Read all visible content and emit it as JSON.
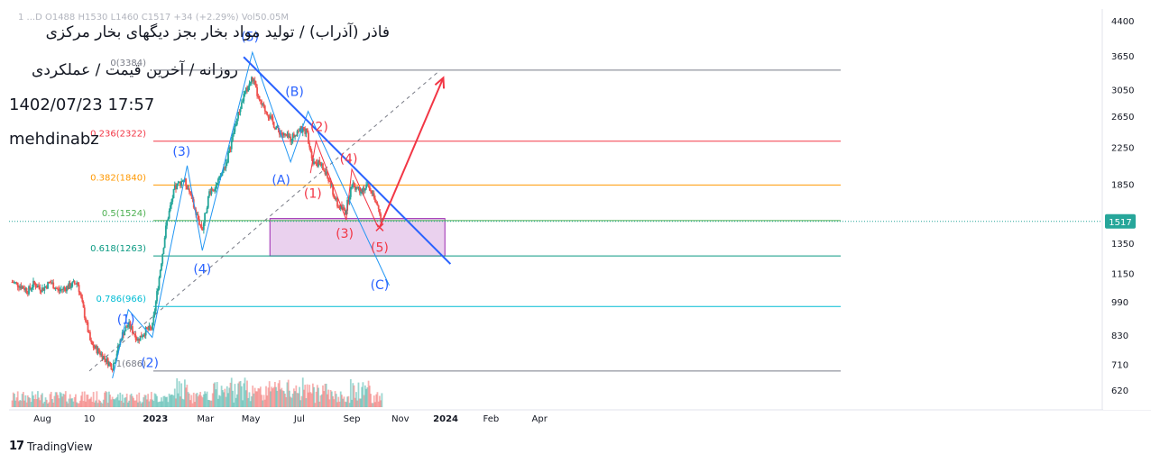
{
  "header": {
    "ohlc_readout": "1  ...D  O1488  H1530  L1460  C1517  +34 (+2.29%)  Vol50.05M",
    "title_line1": "فاذر (آذراب) / تولید مواد بخار بجز دیگهای بخار مرکزی",
    "title_line2": "روزانه / آخرین قیمت / عملکردی",
    "datetime": "1402/07/23 17:57",
    "author": "mehdinabz"
  },
  "brand": {
    "icon": "tradingview-logo-icon",
    "name": "TradingView"
  },
  "chart_data": {
    "type": "candlestick",
    "x_axis": {
      "labels": [
        "Aug",
        "10",
        "2023",
        "Mar",
        "May",
        "Jul",
        "Sep",
        "Nov",
        "2024",
        "Feb",
        "Apr"
      ]
    },
    "y_axis": {
      "scale": "log",
      "ticks": [
        4400,
        3650,
        3050,
        2650,
        2250,
        1850,
        1350,
        1150,
        990,
        830,
        710,
        620
      ],
      "range": [
        560,
        4700
      ]
    },
    "last_price": {
      "value": 1517,
      "label": "1517",
      "color": "#26a69a"
    },
    "fib_levels": [
      {
        "ratio": "0(3384)",
        "value": 3384,
        "color": "#787b86"
      },
      {
        "ratio": "0.236(2322)",
        "value": 2322,
        "color": "#f23645"
      },
      {
        "ratio": "0.382(1840)",
        "value": 1840,
        "color": "#ff9800"
      },
      {
        "ratio": "0.5(1524)",
        "value": 1524,
        "color": "#4caf50"
      },
      {
        "ratio": "0.618(1263)",
        "value": 1263,
        "color": "#089981"
      },
      {
        "ratio": "0.786(966)",
        "value": 966,
        "color": "#00bcd4"
      },
      {
        "ratio": "1(686)",
        "value": 686,
        "color": "#787b86"
      }
    ],
    "wave_labels": [
      {
        "text": "(1)",
        "color": "#2962ff",
        "date": "2022-11-25",
        "price": 880
      },
      {
        "text": "(2)",
        "color": "#2962ff",
        "date": "2022-12-25",
        "price": 700
      },
      {
        "text": "(3)",
        "color": "#2962ff",
        "date": "2023-02-03",
        "price": 2150
      },
      {
        "text": "(4)",
        "color": "#2962ff",
        "date": "2023-03-01",
        "price": 1150
      },
      {
        "text": "(5)",
        "color": "#2962ff",
        "date": "2023-04-30",
        "price": 3950
      },
      {
        "text": "(A)",
        "color": "#2962ff",
        "date": "2023-06-08",
        "price": 1850
      },
      {
        "text": "(B)",
        "color": "#2962ff",
        "date": "2023-06-25",
        "price": 2950
      },
      {
        "text": "(C)",
        "color": "#2962ff",
        "date": "2023-10-10",
        "price": 1060
      },
      {
        "text": "(1)",
        "color": "#f23645",
        "date": "2023-07-18",
        "price": 1720
      },
      {
        "text": "(2)",
        "color": "#f23645",
        "date": "2023-07-26",
        "price": 2450
      },
      {
        "text": "(3)",
        "color": "#f23645",
        "date": "2023-08-27",
        "price": 1390
      },
      {
        "text": "(4)",
        "color": "#f23645",
        "date": "2023-09-01",
        "price": 2070
      },
      {
        "text": "(5)",
        "color": "#f23645",
        "date": "2023-10-10",
        "price": 1290
      }
    ],
    "blue_wave_path": [
      {
        "date": "2022-11-08",
        "price": 660
      },
      {
        "date": "2022-11-28",
        "price": 950
      },
      {
        "date": "2022-12-28",
        "price": 820
      },
      {
        "date": "2023-02-10",
        "price": 2040
      },
      {
        "date": "2023-03-01",
        "price": 1300
      },
      {
        "date": "2023-05-03",
        "price": 3720
      },
      {
        "date": "2023-06-20",
        "price": 2080
      },
      {
        "date": "2023-07-12",
        "price": 2720
      },
      {
        "date": "2023-10-22",
        "price": 1080
      }
    ],
    "red_wave_path": [
      {
        "date": "2023-07-15",
        "price": 1960
      },
      {
        "date": "2023-07-22",
        "price": 2320
      },
      {
        "date": "2023-08-29",
        "price": 1530
      },
      {
        "date": "2023-09-05",
        "price": 2000
      },
      {
        "date": "2023-10-08",
        "price": 1470
      }
    ],
    "trendline": [
      {
        "date": "2023-04-22",
        "price": 3630
      },
      {
        "date": "2024-01-07",
        "price": 1210
      }
    ],
    "dashed_channel": [
      {
        "date": "2022-10-10",
        "price": 686
      },
      {
        "date": "2023-12-25",
        "price": 3384
      }
    ],
    "target_arrow": [
      {
        "date": "2023-10-10",
        "price": 1470
      },
      {
        "date": "2023-12-29",
        "price": 3250
      }
    ],
    "support_zone": {
      "from_date": "2023-05-25",
      "to_date": "2023-12-31",
      "low": 1263,
      "high": 1540,
      "color": "#e1bee7"
    },
    "series": [
      {
        "name": "price",
        "points": [
          [
            "2022-07-05",
            1100
          ],
          [
            "2022-07-15",
            1080
          ],
          [
            "2022-07-25",
            1050
          ],
          [
            "2022-08-01",
            1090
          ],
          [
            "2022-08-12",
            1060
          ],
          [
            "2022-08-22",
            1100
          ],
          [
            "2022-09-01",
            1050
          ],
          [
            "2022-09-12",
            1070
          ],
          [
            "2022-09-25",
            1100
          ],
          [
            "2022-10-02",
            960
          ],
          [
            "2022-10-12",
            790
          ],
          [
            "2022-10-22",
            760
          ],
          [
            "2022-11-08",
            700
          ],
          [
            "2022-11-20",
            830
          ],
          [
            "2022-11-28",
            880
          ],
          [
            "2022-12-10",
            810
          ],
          [
            "2022-12-20",
            850
          ],
          [
            "2022-12-28",
            860
          ],
          [
            "2023-01-05",
            1100
          ],
          [
            "2023-01-15",
            1500
          ],
          [
            "2023-01-25",
            1800
          ],
          [
            "2023-02-05",
            1900
          ],
          [
            "2023-02-12",
            1800
          ],
          [
            "2023-02-20",
            1600
          ],
          [
            "2023-03-01",
            1450
          ],
          [
            "2023-03-10",
            1780
          ],
          [
            "2023-03-20",
            1850
          ],
          [
            "2023-04-01",
            2100
          ],
          [
            "2023-04-12",
            2550
          ],
          [
            "2023-04-22",
            2950
          ],
          [
            "2023-05-03",
            3250
          ],
          [
            "2023-05-12",
            2850
          ],
          [
            "2023-05-22",
            2700
          ],
          [
            "2023-06-01",
            2500
          ],
          [
            "2023-06-10",
            2400
          ],
          [
            "2023-06-20",
            2350
          ],
          [
            "2023-06-30",
            2470
          ],
          [
            "2023-07-10",
            2450
          ],
          [
            "2023-07-18",
            2100
          ],
          [
            "2023-07-28",
            2050
          ],
          [
            "2023-08-08",
            1870
          ],
          [
            "2023-08-18",
            1650
          ],
          [
            "2023-08-28",
            1600
          ],
          [
            "2023-09-05",
            1850
          ],
          [
            "2023-09-15",
            1800
          ],
          [
            "2023-09-25",
            1820
          ],
          [
            "2023-10-01",
            1780
          ],
          [
            "2023-10-08",
            1600
          ],
          [
            "2023-10-14",
            1517
          ]
        ]
      }
    ],
    "volume_note": "volume histogram at bottom"
  }
}
